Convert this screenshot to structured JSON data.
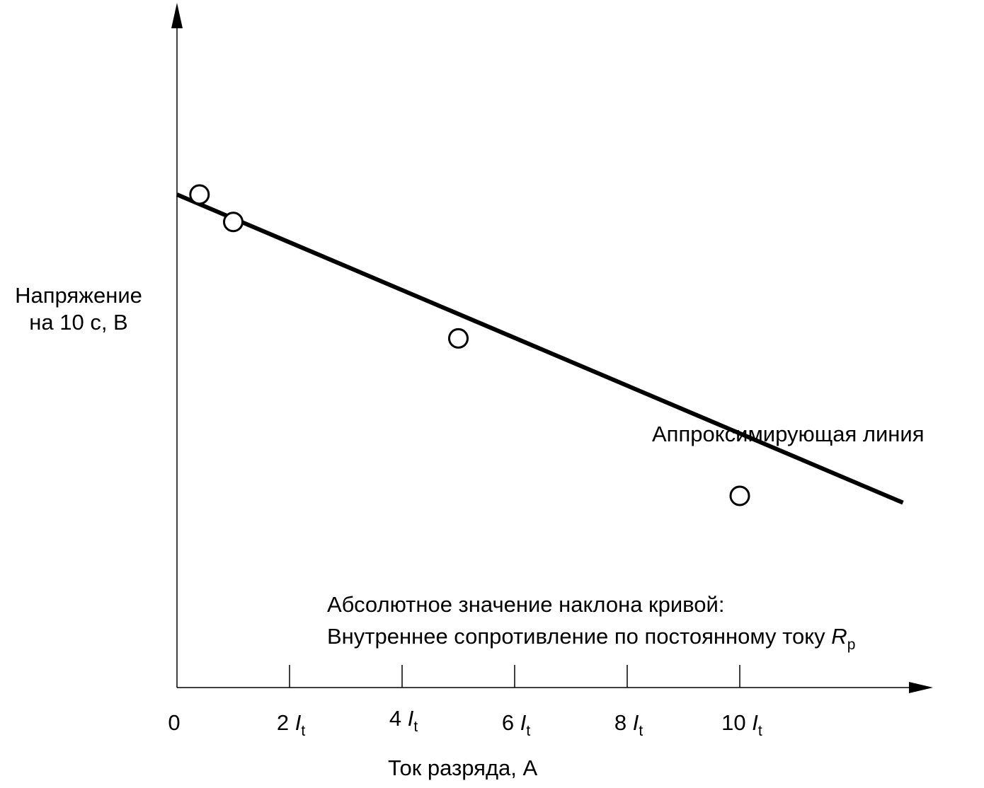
{
  "chart_data": {
    "type": "scatter",
    "ylabel_lines": [
      "Напряжение",
      "на 10 с, В"
    ],
    "xlabel": "Ток разряда, А",
    "x_ticks": [
      {
        "value": 0,
        "text": "0",
        "var": "",
        "sub": ""
      },
      {
        "value": 2,
        "text": "2 ",
        "var": "I",
        "sub": "t"
      },
      {
        "value": 4,
        "text": "4 ",
        "var": "I",
        "sub": "t"
      },
      {
        "value": 6,
        "text": "6 ",
        "var": "I",
        "sub": "t"
      },
      {
        "value": 8,
        "text": "8 ",
        "var": "I",
        "sub": "t"
      },
      {
        "value": 10,
        "text": "10 ",
        "var": "I",
        "sub": "t"
      }
    ],
    "x_unit": "I_t",
    "xlim": [
      0,
      13.3
    ],
    "y_values_shown": false,
    "points": [
      {
        "x": 0.4,
        "y": 0.72
      },
      {
        "x": 1.0,
        "y": 0.68
      },
      {
        "x": 5.0,
        "y": 0.51
      },
      {
        "x": 10.0,
        "y": 0.28
      }
    ],
    "fit_line": {
      "x": [
        0,
        12.9
      ],
      "y": [
        0.72,
        0.27
      ]
    },
    "fit_label": "Аппроксимирующая линия",
    "annotation": {
      "line1": "Абсолютное значение наклона кривой:",
      "line2_text": "Внутреннее сопротивление по постоянному току ",
      "line2_var": "R",
      "line2_sub": "p"
    },
    "grid": false,
    "legend": "none"
  }
}
